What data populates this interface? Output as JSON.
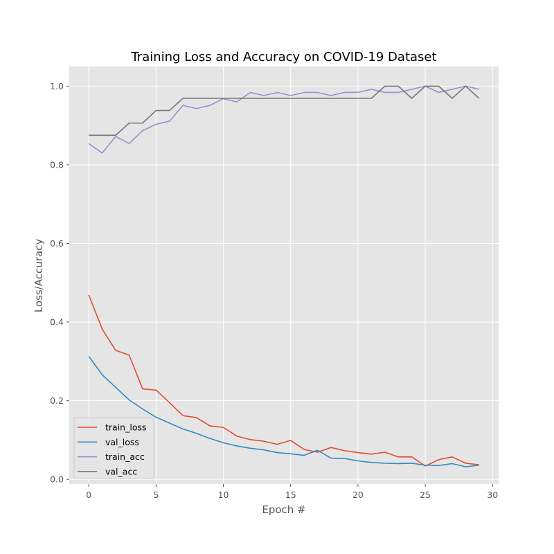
{
  "chart_data": {
    "type": "line",
    "title": "Training Loss and Accuracy on COVID-19 Dataset",
    "xlabel": "Epoch #",
    "ylabel": "Loss/Accuracy",
    "xlim": [
      -1.45,
      30.45
    ],
    "ylim": [
      -0.012,
      1.05
    ],
    "xticks": [
      0,
      5,
      10,
      15,
      20,
      25,
      30
    ],
    "yticks": [
      0.0,
      0.2,
      0.4,
      0.6,
      0.8,
      1.0
    ],
    "xtick_labels": [
      "0",
      "5",
      "10",
      "15",
      "20",
      "25",
      "30"
    ],
    "ytick_labels": [
      "0.0",
      "0.2",
      "0.4",
      "0.6",
      "0.8",
      "1.0"
    ],
    "grid": true,
    "legend_position": "lower-left",
    "x": [
      0,
      1,
      2,
      3,
      4,
      5,
      6,
      7,
      8,
      9,
      10,
      11,
      12,
      13,
      14,
      15,
      16,
      17,
      18,
      19,
      20,
      21,
      22,
      23,
      24,
      25,
      26,
      27,
      28,
      29
    ],
    "series": [
      {
        "name": "train_loss",
        "color": "#E24A33",
        "values": [
          0.469,
          0.382,
          0.328,
          0.316,
          0.23,
          0.227,
          0.195,
          0.162,
          0.157,
          0.136,
          0.132,
          0.11,
          0.101,
          0.097,
          0.089,
          0.099,
          0.076,
          0.069,
          0.081,
          0.073,
          0.068,
          0.064,
          0.069,
          0.057,
          0.057,
          0.034,
          0.05,
          0.057,
          0.041,
          0.037
        ]
      },
      {
        "name": "val_loss",
        "color": "#348ABD",
        "values": [
          0.313,
          0.266,
          0.234,
          0.202,
          0.179,
          0.158,
          0.143,
          0.128,
          0.117,
          0.104,
          0.093,
          0.085,
          0.079,
          0.075,
          0.068,
          0.065,
          0.061,
          0.074,
          0.054,
          0.053,
          0.047,
          0.043,
          0.041,
          0.04,
          0.041,
          0.036,
          0.035,
          0.04,
          0.032,
          0.036
        ]
      },
      {
        "name": "train_acc",
        "color": "#988ED5",
        "values": [
          0.854,
          0.83,
          0.872,
          0.854,
          0.887,
          0.903,
          0.911,
          0.951,
          0.943,
          0.951,
          0.968,
          0.96,
          0.984,
          0.976,
          0.984,
          0.976,
          0.984,
          0.984,
          0.976,
          0.984,
          0.984,
          0.992,
          0.984,
          0.984,
          0.992,
          1.0,
          0.984,
          0.992,
          1.0,
          0.992
        ]
      },
      {
        "name": "val_acc",
        "color": "#777777",
        "values": [
          0.875,
          0.875,
          0.875,
          0.906,
          0.906,
          0.938,
          0.938,
          0.969,
          0.969,
          0.969,
          0.969,
          0.969,
          0.969,
          0.969,
          0.969,
          0.969,
          0.969,
          0.969,
          0.969,
          0.969,
          0.969,
          0.969,
          1.0,
          1.0,
          0.969,
          1.0,
          1.0,
          0.969,
          1.0,
          0.969
        ]
      }
    ]
  }
}
